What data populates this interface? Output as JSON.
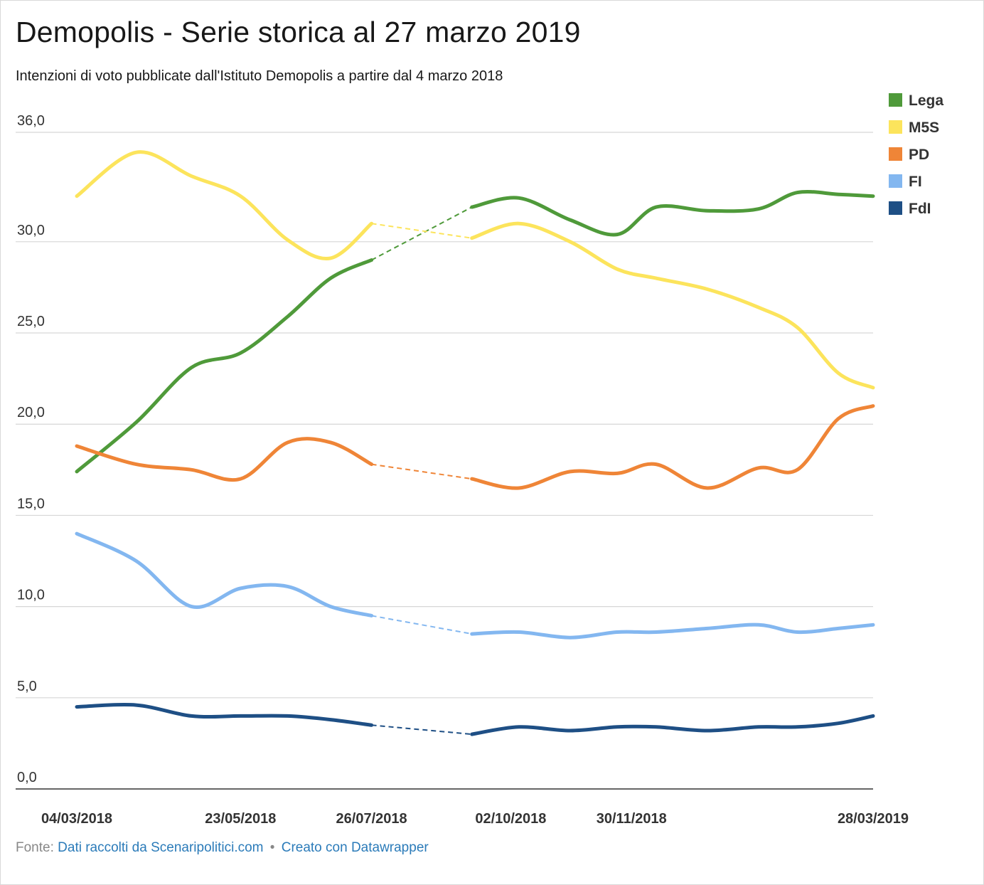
{
  "header": {
    "title": "Demopolis - Serie storica al 27 marzo 2019",
    "subtitle": "Intenzioni di voto pubblicate dall'Istituto Demopolis a partire dal 4 marzo 2018"
  },
  "footer": {
    "source_prefix": "Fonte:",
    "source_link": "Dati raccolti da Scenaripolitici.com",
    "separator": "•",
    "credit_link": "Creato con Datawrapper"
  },
  "chart_data": {
    "type": "line",
    "title": "Demopolis - Serie storica al 27 marzo 2019",
    "subtitle": "Intenzioni di voto pubblicate dall'Istituto Demopolis a partire dal 4 marzo 2018",
    "xlabel": "",
    "ylabel": "",
    "ylim": [
      0,
      36
    ],
    "yticks": [
      0,
      5,
      10,
      15,
      20,
      25,
      30,
      36
    ],
    "ytick_labels": [
      "0,0",
      "5,0",
      "10,0",
      "15,0",
      "20,0",
      "25,0",
      "30,0",
      "36,0"
    ],
    "xlim": [
      "2018-03-04",
      "2019-03-28"
    ],
    "xticks": [
      "2018-03-04",
      "2018-05-23",
      "2018-07-26",
      "2018-10-02",
      "2018-11-30",
      "2019-03-28"
    ],
    "xtick_labels": [
      "04/03/2018",
      "23/05/2018",
      "26/07/2018",
      "02/10/2018",
      "30/11/2018",
      "28/03/2019"
    ],
    "grid": true,
    "legend": "top-right",
    "gap": {
      "from": "2018-07-26",
      "to": "2018-09-13",
      "style": "dashed"
    },
    "x": [
      "2018-03-04",
      "2018-04-02",
      "2018-04-29",
      "2018-05-23",
      "2018-06-15",
      "2018-07-06",
      "2018-07-26",
      "2018-09-13",
      "2018-10-06",
      "2018-10-31",
      "2018-11-23",
      "2018-12-12",
      "2019-01-06",
      "2019-01-31",
      "2019-02-19",
      "2019-03-11",
      "2019-03-28"
    ],
    "series": [
      {
        "name": "Lega",
        "color": "#4f9a3a",
        "values": [
          17.4,
          20.1,
          23.1,
          23.9,
          25.9,
          28.0,
          29.0,
          31.9,
          32.4,
          31.2,
          30.4,
          31.9,
          31.7,
          31.8,
          32.7,
          32.6,
          32.5
        ]
      },
      {
        "name": "M5S",
        "color": "#fce45c",
        "values": [
          32.5,
          34.9,
          33.6,
          32.5,
          30.1,
          29.1,
          31.0,
          30.2,
          31.0,
          30.0,
          28.5,
          28.0,
          27.4,
          26.4,
          25.3,
          22.8,
          22.0
        ]
      },
      {
        "name": "PD",
        "color": "#ef8537",
        "values": [
          18.8,
          17.8,
          17.5,
          17.0,
          19.0,
          19.0,
          17.8,
          17.0,
          16.5,
          17.4,
          17.3,
          17.8,
          16.5,
          17.6,
          17.5,
          20.3,
          21.0
        ]
      },
      {
        "name": "FI",
        "color": "#83b7f0",
        "values": [
          14.0,
          12.5,
          10.0,
          11.0,
          11.1,
          10.0,
          9.5,
          8.5,
          8.6,
          8.3,
          8.6,
          8.6,
          8.8,
          9.0,
          8.6,
          8.8,
          9.0
        ]
      },
      {
        "name": "FdI",
        "color": "#1e4f85",
        "values": [
          4.5,
          4.6,
          4.0,
          4.0,
          4.0,
          3.8,
          3.5,
          3.0,
          3.4,
          3.2,
          3.4,
          3.4,
          3.2,
          3.4,
          3.4,
          3.6,
          4.0
        ]
      }
    ]
  }
}
